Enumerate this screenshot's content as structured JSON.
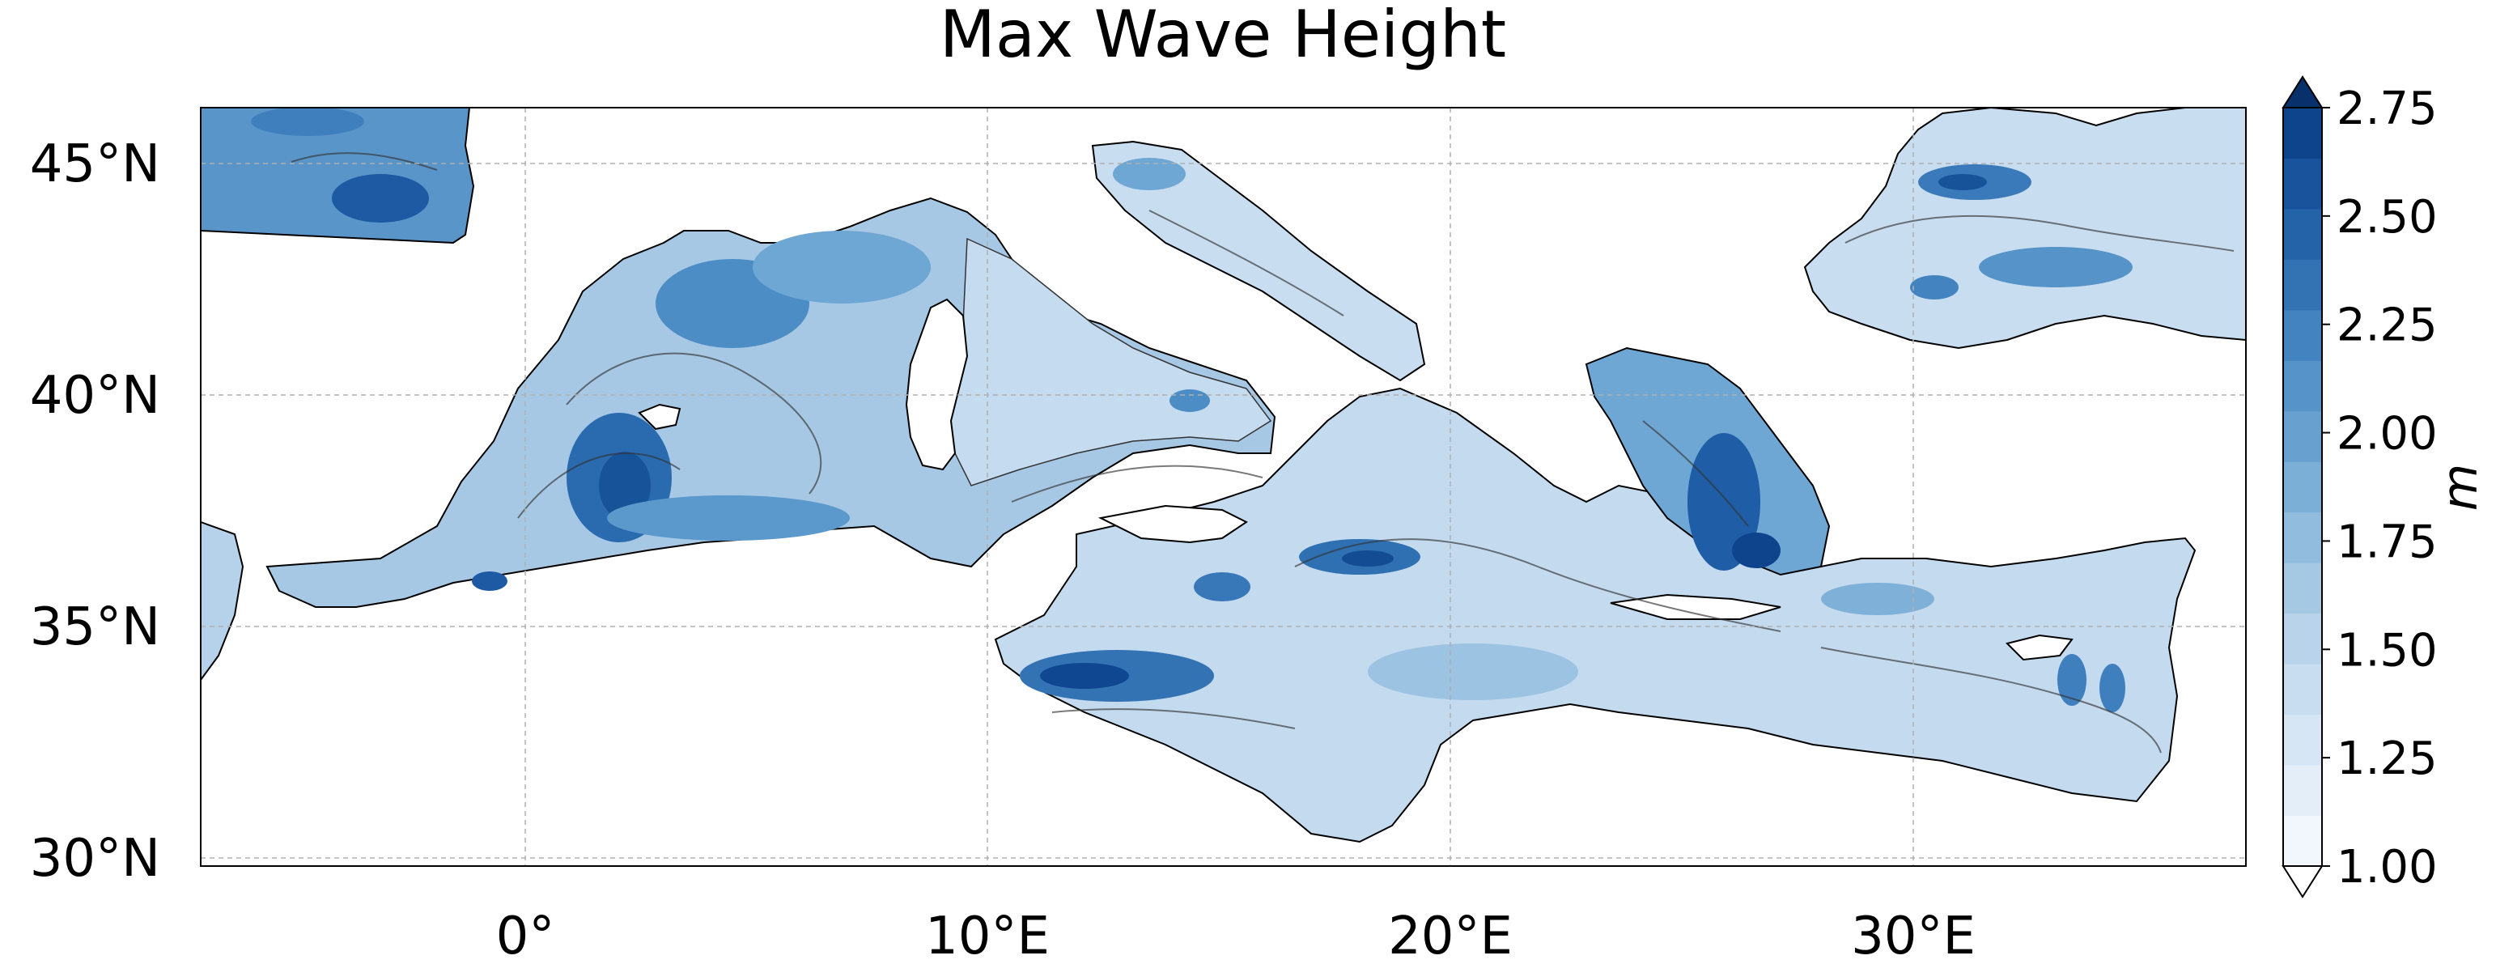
{
  "map": {
    "title": "Max Wave Height",
    "region": "Mediterranean Sea and Black Sea",
    "lon_range": [
      -7,
      37
    ],
    "lat_range": [
      29.7,
      46.2
    ],
    "grid": true,
    "lat_ticks": [
      {
        "value": 30,
        "label": "30°N"
      },
      {
        "value": 35,
        "label": "35°N"
      },
      {
        "value": 40,
        "label": "40°N"
      },
      {
        "value": 45,
        "label": "45°N"
      }
    ],
    "lon_ticks": [
      {
        "value": 0,
        "label": "0°"
      },
      {
        "value": 10,
        "label": "10°E"
      },
      {
        "value": 20,
        "label": "20°E"
      },
      {
        "value": 30,
        "label": "30°E"
      }
    ],
    "colors": {
      "land": "#ffffff",
      "coast": "#000000",
      "contour": "#333333",
      "grid": "#b0b0b0"
    }
  },
  "colorbar": {
    "label": "m",
    "min": 1.0,
    "max": 2.75,
    "extend": "both",
    "tick_labels": [
      "1.00",
      "1.25",
      "1.50",
      "1.75",
      "2.00",
      "2.25",
      "2.50",
      "2.75"
    ],
    "tick_values": [
      1.0,
      1.25,
      1.5,
      1.75,
      2.0,
      2.25,
      2.5,
      2.75
    ],
    "level_colors": [
      "#f2f7fd",
      "#e4eef9",
      "#d6e6f4",
      "#c9ddf0",
      "#b9d4ea",
      "#a6c9e3",
      "#91bcdd",
      "#7cafd6",
      "#68a1cf",
      "#5593c8",
      "#4383bf",
      "#3373b4",
      "#2563a9",
      "#18539b",
      "#0d448b"
    ],
    "under_color": "#ffffff",
    "over_color": "#08306b"
  }
}
